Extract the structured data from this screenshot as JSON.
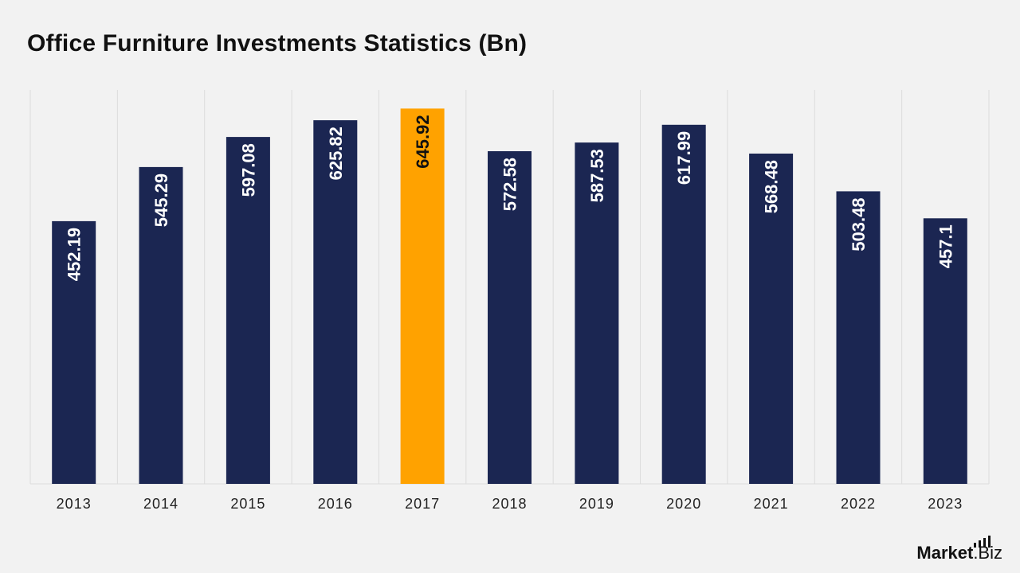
{
  "chart_data": {
    "type": "bar",
    "title": "Office Furniture Investments Statistics (Bn)",
    "xlabel": "",
    "ylabel": "",
    "categories": [
      "2013",
      "2014",
      "2015",
      "2016",
      "2017",
      "2018",
      "2019",
      "2020",
      "2021",
      "2022",
      "2023"
    ],
    "values": [
      452.19,
      545.29,
      597.08,
      625.82,
      645.92,
      572.58,
      587.53,
      617.99,
      568.48,
      503.48,
      457.1
    ],
    "value_labels": [
      "452.19",
      "545.29",
      "597.08",
      "625.82",
      "645.92",
      "572.58",
      "587.53",
      "617.99",
      "568.48",
      "503.48",
      "457.1"
    ],
    "highlight_index": 4,
    "ylim": [
      0,
      678
    ],
    "grid": "vertical separators",
    "legend": "none",
    "colors": {
      "bar": "#1b2652",
      "highlight": "#ffa200",
      "label_on_bar": "#ffffff",
      "label_on_highlight": "#111111",
      "separator": "#dcdcdc",
      "axis_text": "#222222",
      "background": "#f2f2f2"
    }
  },
  "branding": {
    "name_bold": "Market",
    "name_light": ".Biz",
    "icon": "bar-chart-icon"
  }
}
